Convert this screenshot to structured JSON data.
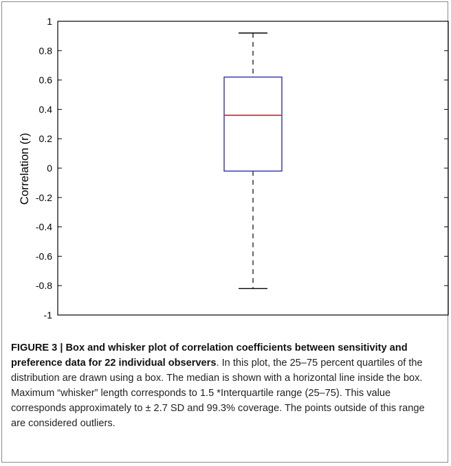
{
  "chart_data": {
    "type": "box",
    "ylabel": "Correlation (r)",
    "ylim": [
      -1,
      1
    ],
    "yticks": [
      1,
      0.8,
      0.6,
      0.4,
      0.2,
      0,
      -0.2,
      -0.4,
      -0.6,
      -0.8,
      -1
    ],
    "ytick_labels": [
      "1",
      "0.8",
      "0.6",
      "0.4",
      "0.2",
      "0",
      "-0.2",
      "-0.4",
      "-0.6",
      "-0.8",
      "-1"
    ],
    "box": {
      "whisker_high": 0.92,
      "q3": 0.62,
      "median": 0.36,
      "q1": -0.02,
      "whisker_low": -0.82
    },
    "colors": {
      "box": "#2f2fb0",
      "median": "#e01818",
      "whisker": "#000000"
    }
  },
  "caption": {
    "figure_label": "FIGURE 3 | Box and whisker plot of correlation coefficients between sensitivity and preference data for 22 individual observers",
    "text": ". In this plot, the 25–75 percent quartiles of the distribution are drawn using a box. The median is shown with a horizontal line inside the box. Maximum “whisker” length corresponds to 1.5 *Interquartile range (25–75). This value corresponds approximately to ± 2.7 SD and 99.3% coverage. The points outside of this range are considered outliers."
  }
}
